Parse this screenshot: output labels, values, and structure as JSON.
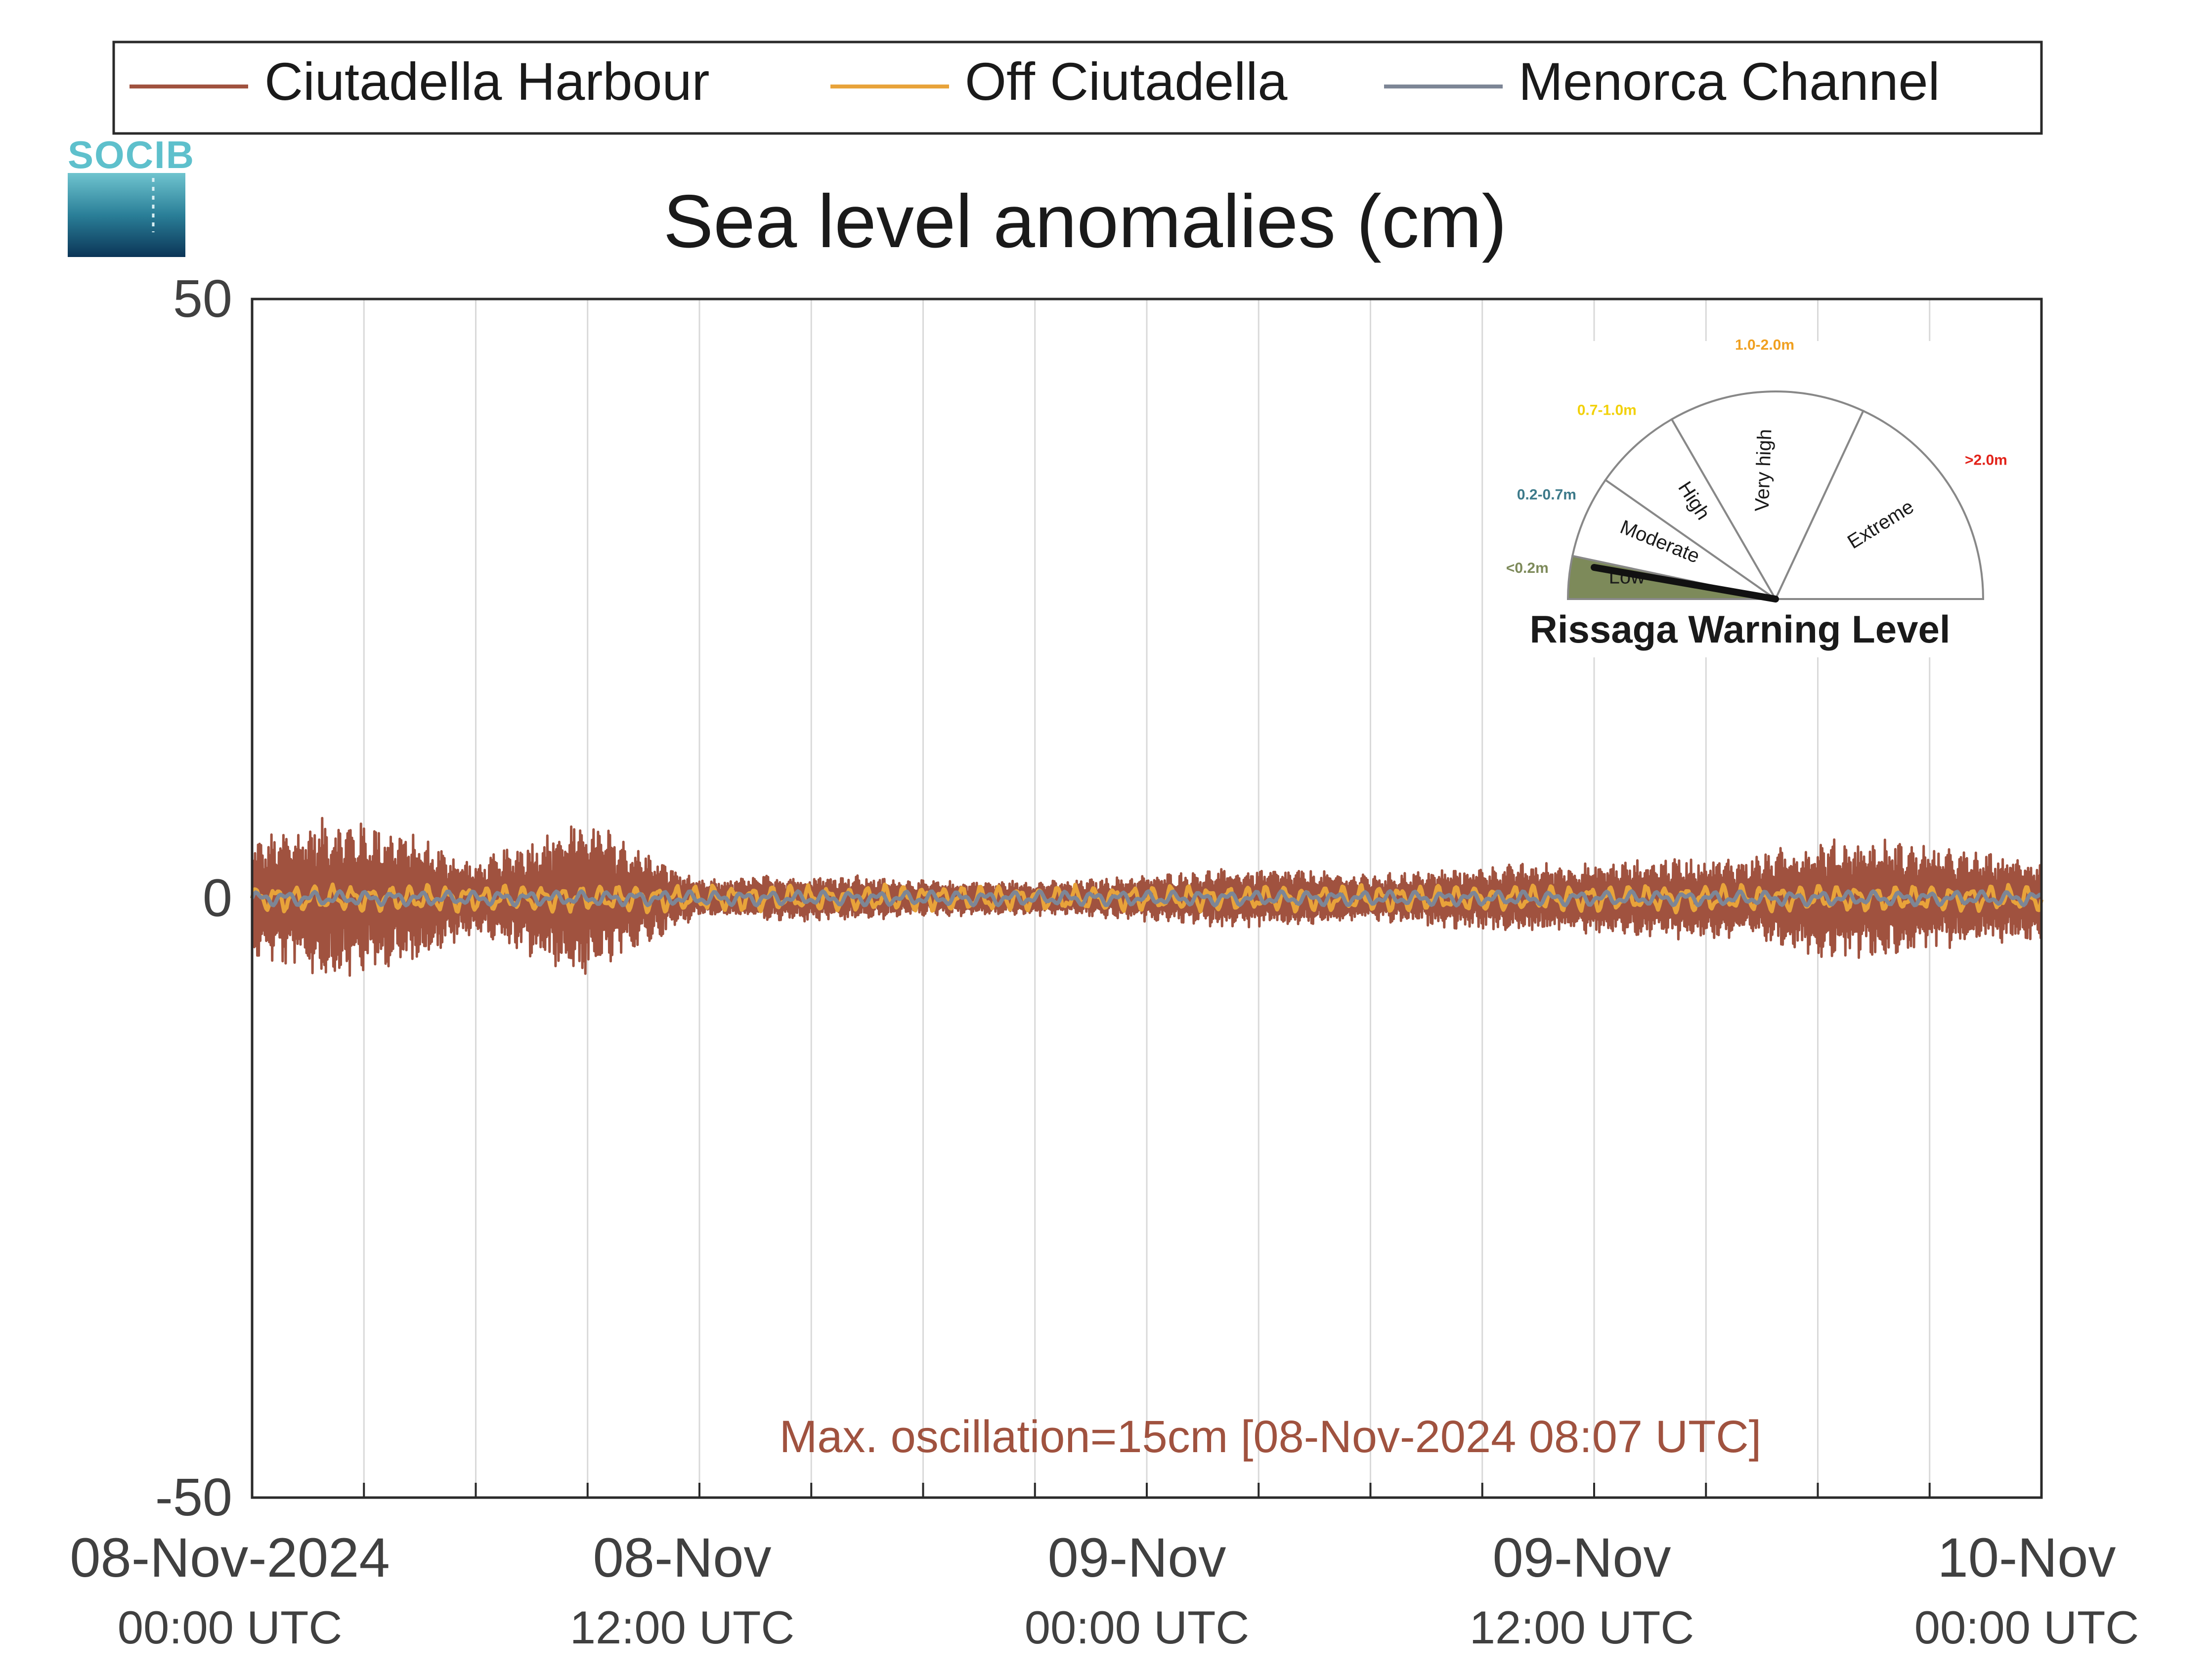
{
  "chart_data": {
    "type": "line",
    "title": "Sea level anomalies (cm)",
    "xlabel": "",
    "ylabel": "",
    "ylim": [
      -50,
      50
    ],
    "yticks": [
      "50",
      "0",
      "-50"
    ],
    "xlim": [
      "2024-11-08T00:00Z",
      "2024-11-10T00:00Z"
    ],
    "x_ticks": [
      {
        "date": "08-Nov-2024",
        "time": "00:00 UTC"
      },
      {
        "date": "08-Nov",
        "time": "12:00 UTC"
      },
      {
        "date": "09-Nov",
        "time": "00:00 UTC"
      },
      {
        "date": "09-Nov",
        "time": "12:00 UTC"
      },
      {
        "date": "10-Nov",
        "time": "00:00 UTC"
      }
    ],
    "grid": "vertical",
    "legend_position": "top",
    "series": [
      {
        "name": "Ciutadella Harbour",
        "color": "#a0523f",
        "envelope_hours": [
          0,
          2,
          4,
          6,
          8,
          9,
          10,
          12,
          14,
          16,
          18,
          20,
          22,
          24,
          26,
          28,
          30,
          32,
          34,
          36,
          38,
          40,
          42,
          44,
          46,
          48
        ],
        "envelope_cm": [
          5,
          7,
          6,
          3,
          6,
          7,
          5,
          1.5,
          2,
          2,
          1.5,
          1.5,
          1.5,
          2,
          2.5,
          2.5,
          2,
          2.5,
          3,
          3,
          3.5,
          3.5,
          5,
          5,
          4,
          3.5
        ]
      },
      {
        "name": "Off Ciutadella",
        "color": "#e8a33a",
        "amplitude_cm": 1.2
      },
      {
        "name": "Menorca Channel",
        "color": "#7d8696",
        "amplitude_cm": 0.6
      }
    ],
    "annotation": "Max. oscillation=15cm [08-Nov-2024 08:07 UTC]",
    "annotation_color": "#a0523f"
  },
  "logo": {
    "text": "SOCIB"
  },
  "gauge": {
    "title": "Rissaga Warning Level",
    "level": "Low",
    "sectors": [
      {
        "label": "Low",
        "range": "<0.2m",
        "color": "#7d8a5a"
      },
      {
        "label": "Moderate",
        "range": "0.2-0.7m",
        "color": "#3d7a8a"
      },
      {
        "label": "High",
        "range": "0.7-1.0m",
        "color": "#f2d10a"
      },
      {
        "label": "Very high",
        "range": "1.0-2.0m",
        "color": "#f0a020"
      },
      {
        "label": "Extreme",
        "range": ">2.0m",
        "color": "#e2231a"
      }
    ]
  }
}
